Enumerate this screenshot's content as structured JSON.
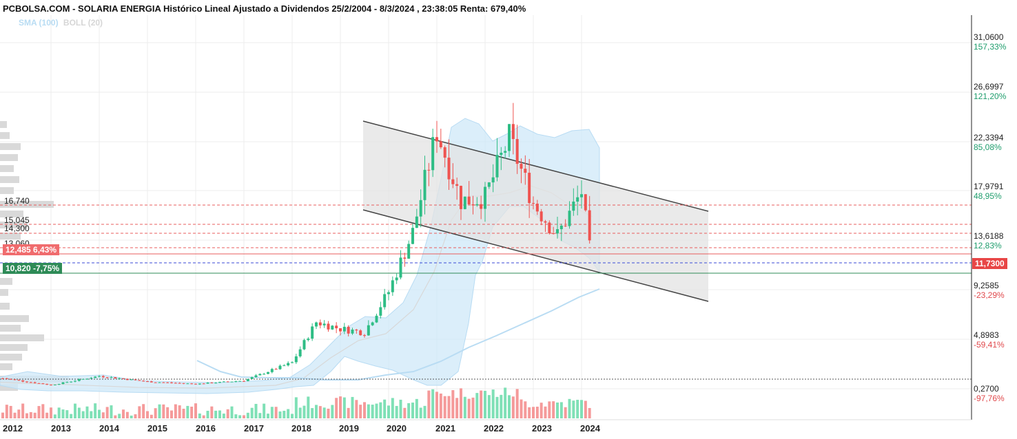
{
  "header": {
    "title": "PCBOLSA.COM - SOLARIA ENERGIA Histórico Lineal Ajustado a Dividendos 25/2/2004 - 8/3/2024 , 23:38:05 Renta: 679,40%",
    "legend_sma": "SMA (100)",
    "legend_boll": "BOLL (20)"
  },
  "axis": {
    "price_ticks": [
      {
        "price": "31,0600",
        "pct": "157,33%",
        "sign": "pos"
      },
      {
        "price": "26,6997",
        "pct": "121,20%",
        "sign": "pos"
      },
      {
        "price": "22,3394",
        "pct": "85,08%",
        "sign": "pos"
      },
      {
        "price": "17,9791",
        "pct": "48,95%",
        "sign": "pos"
      },
      {
        "price": "13,6188",
        "pct": "12,83%",
        "sign": "pos"
      },
      {
        "price": "9,2585",
        "pct": "-23,29%",
        "sign": "neg"
      },
      {
        "price": "4,8983",
        "pct": "-59,41%",
        "sign": "neg"
      },
      {
        "price": "0,2700",
        "pct": "-97,76%",
        "sign": "neg"
      }
    ],
    "years": [
      "2012",
      "2013",
      "2014",
      "2015",
      "2016",
      "2017",
      "2018",
      "2019",
      "2020",
      "2021",
      "2022",
      "2023",
      "2024"
    ]
  },
  "levels": {
    "l1": "16,740",
    "l2": "15,045",
    "l3": "14,300",
    "l4": "13,060",
    "resistance_tag": "12,485  6,43%",
    "support_tag": "10,820  -7,75%",
    "last_price": "11,7300"
  },
  "colors": {
    "up": "#2ebd85",
    "down": "#ef5350",
    "sma": "#b9dcf3",
    "boll_fill": "#cfe8f8",
    "channel_fill": "#e6e6e6",
    "level_line": "#e85c5c",
    "current_line": "#3a49d6",
    "support_line": "#2e8b57"
  },
  "chart_data": {
    "type": "candlestick",
    "title": "SOLARIA ENERGIA Histórico Lineal Ajustado a Dividendos",
    "x_range": [
      "2012",
      "2024"
    ],
    "y_range": [
      0.27,
      31.06
    ],
    "horizontal_levels": [
      16.74,
      15.045,
      14.3,
      13.06,
      12.485,
      10.82
    ],
    "last_price": 11.73,
    "channel": {
      "upper": [
        {
          "x": "2019.3",
          "y": 24.3
        },
        {
          "x": "2024.6",
          "y": 16.5
        }
      ],
      "lower": [
        {
          "x": "2019.3",
          "y": 16.5
        },
        {
          "x": "2024.6",
          "y": 8.6
        }
      ]
    },
    "monthly_close_samples": [
      {
        "x": "2012.0",
        "y": 1.2
      },
      {
        "x": "2013.0",
        "y": 0.6
      },
      {
        "x": "2014.0",
        "y": 1.4
      },
      {
        "x": "2015.0",
        "y": 0.9
      },
      {
        "x": "2016.0",
        "y": 0.7
      },
      {
        "x": "2017.0",
        "y": 1.0
      },
      {
        "x": "2018.0",
        "y": 2.6
      },
      {
        "x": "2018.5",
        "y": 6.2
      },
      {
        "x": "2019.0",
        "y": 5.6
      },
      {
        "x": "2019.5",
        "y": 5.3
      },
      {
        "x": "2020.0",
        "y": 8.9
      },
      {
        "x": "2020.5",
        "y": 14.2
      },
      {
        "x": "2021.0",
        "y": 23.2
      },
      {
        "x": "2021.5",
        "y": 17.0
      },
      {
        "x": "2022.0",
        "y": 17.3
      },
      {
        "x": "2022.5",
        "y": 22.6
      },
      {
        "x": "2023.0",
        "y": 16.8
      },
      {
        "x": "2023.5",
        "y": 13.9
      },
      {
        "x": "2024.0",
        "y": 17.8
      },
      {
        "x": "2024.2",
        "y": 11.73
      }
    ]
  }
}
